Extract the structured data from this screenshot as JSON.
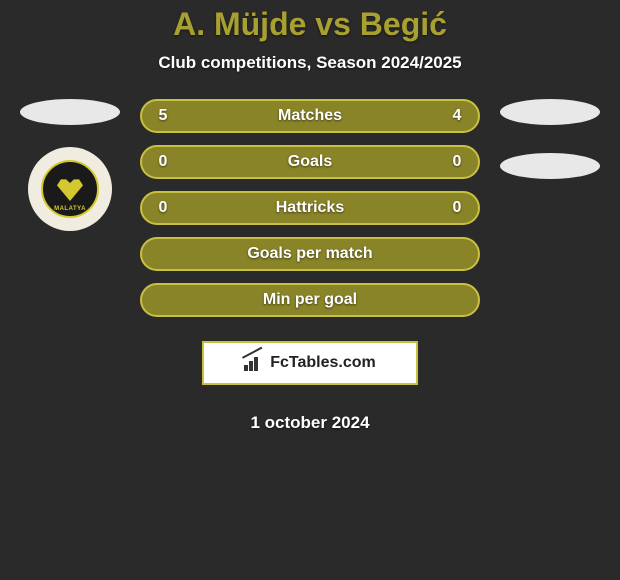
{
  "title": "A. Müjde vs Begić",
  "subtitle": "Club competitions, Season 2024/2025",
  "date": "1 october 2024",
  "brand": {
    "label": "FcTables.com"
  },
  "colors": {
    "accent": "#a8a030",
    "pill_bg": "#8a8428",
    "pill_border": "#c8c040",
    "background": "#2a2a2a",
    "ellipse": "#e8e8e8",
    "text": "#ffffff"
  },
  "left_badge": {
    "name": "MALATYA",
    "visible": true
  },
  "stats": {
    "rows": [
      {
        "left": "5",
        "label": "Matches",
        "right": "4"
      },
      {
        "left": "0",
        "label": "Goals",
        "right": "0"
      },
      {
        "left": "0",
        "label": "Hattricks",
        "right": "0"
      }
    ],
    "summary": [
      {
        "label": "Goals per match"
      },
      {
        "label": "Min per goal"
      }
    ]
  }
}
